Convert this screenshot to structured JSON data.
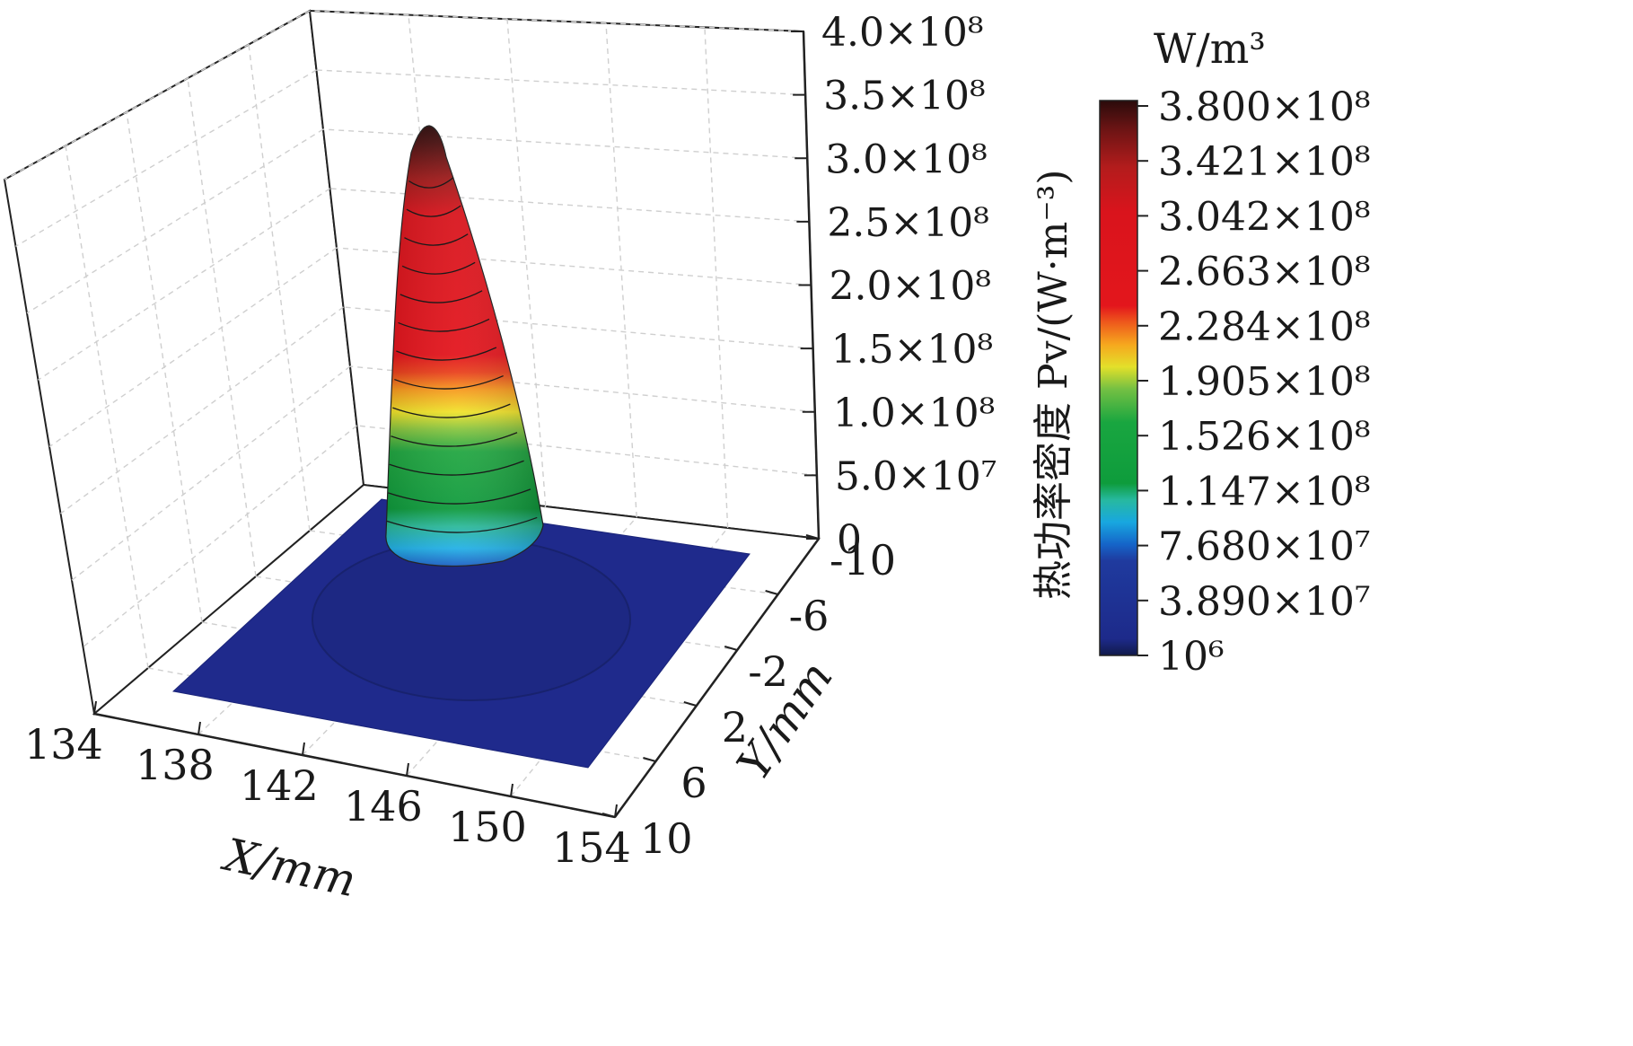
{
  "chart_data": {
    "type": "surface3d",
    "title": "",
    "xlabel": "X/mm",
    "ylabel": "Y/mm",
    "zlabel": "热功率密度 Pv/(W·m⁻³)",
    "x_ticks": [
      "134",
      "138",
      "142",
      "146",
      "150",
      "154"
    ],
    "y_ticks": [
      "-10",
      "-6",
      "-2",
      "2",
      "6",
      "10"
    ],
    "z_ticks": [
      "0",
      "5.0×10⁷",
      "1.0×10⁸",
      "1.5×10⁸",
      "2.0×10⁸",
      "2.5×10⁸",
      "3.0×10⁸",
      "3.5×10⁸",
      "4.0×10⁸"
    ],
    "xlim": [
      134,
      154
    ],
    "ylim": [
      -10,
      10
    ],
    "zlim": [
      0,
      400000000
    ],
    "grid": true,
    "surface": {
      "description_free_params": {
        "peak_x": 142,
        "peak_y": -6,
        "peak_value": 380000000,
        "base_value": 1000000,
        "radius_at_base": 2.2,
        "radius_at_peak": 0.3,
        "plate_x_range": [
          136,
          152
        ],
        "plate_y_range": [
          -10,
          10
        ]
      }
    },
    "colorbar": {
      "unit": "W/m³",
      "ticks": [
        "10⁶",
        "3.890×10⁷",
        "7.680×10⁷",
        "1.147×10⁸",
        "1.526×10⁸",
        "1.905×10⁸",
        "2.284×10⁸",
        "2.663×10⁸",
        "3.042×10⁸",
        "3.421×10⁸",
        "3.800×10⁸"
      ],
      "min": 1000000,
      "max": 380000000
    }
  }
}
